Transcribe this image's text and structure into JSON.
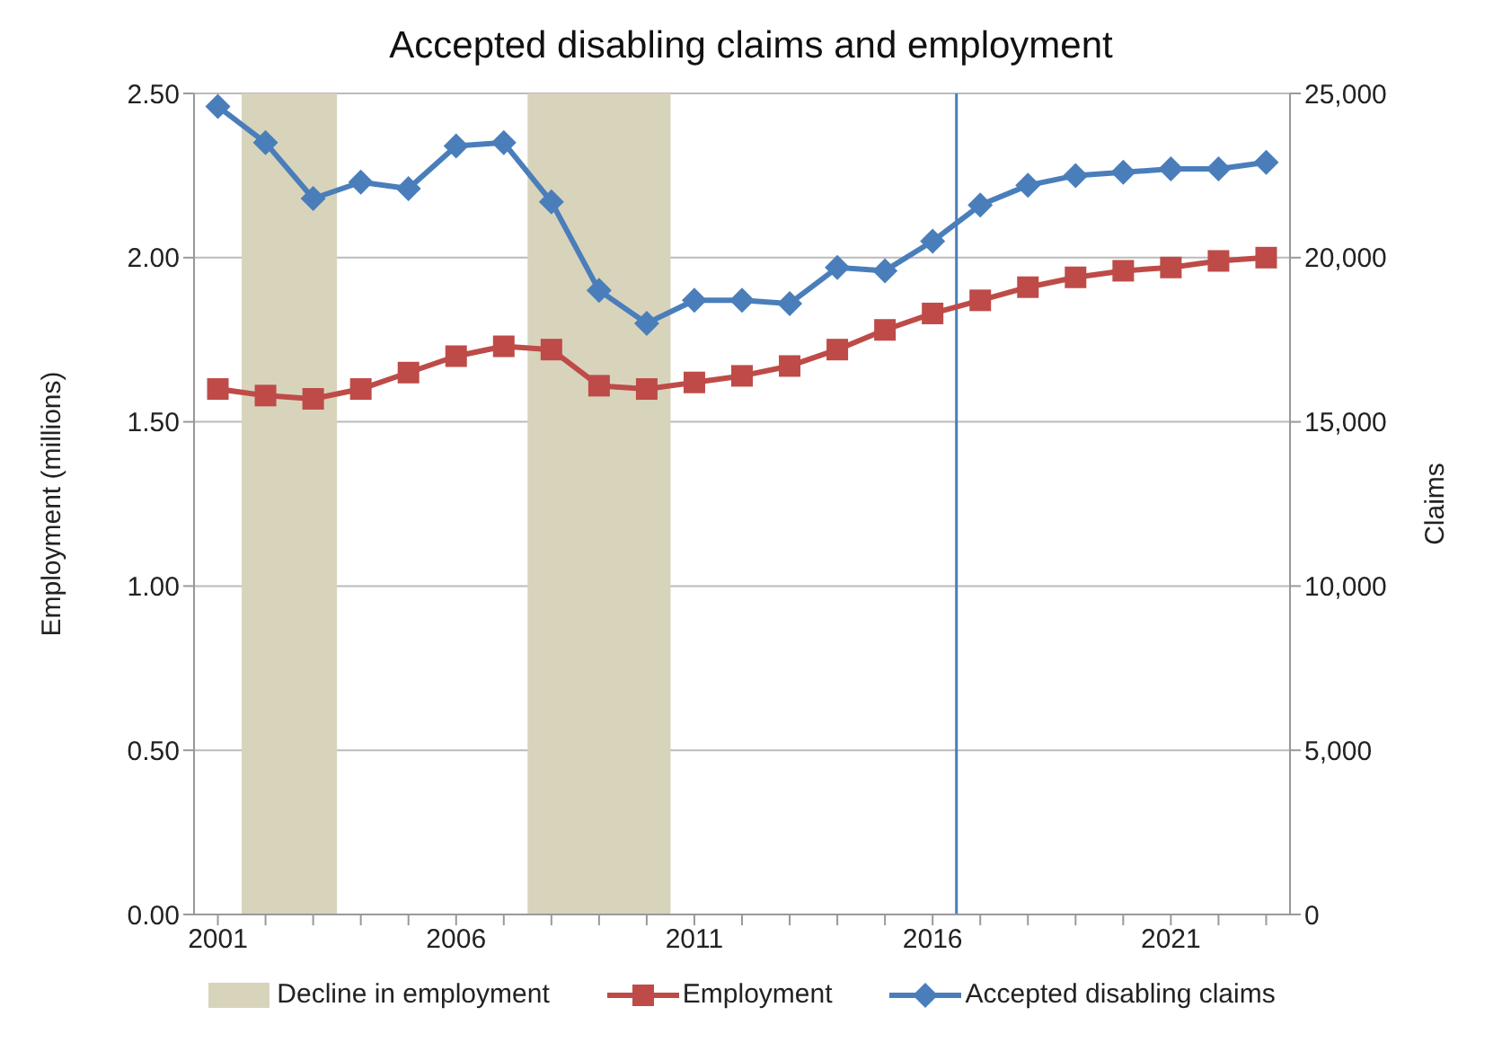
{
  "chart_data": {
    "type": "line",
    "title": "Accepted disabling claims and employment",
    "ylabel": "Employment (millions)",
    "y2label": "Claims",
    "x": [
      2001,
      2002,
      2003,
      2004,
      2005,
      2006,
      2007,
      2008,
      2009,
      2010,
      2011,
      2012,
      2013,
      2014,
      2015,
      2016,
      2017,
      2018,
      2019,
      2020,
      2021,
      2022,
      2023
    ],
    "series": [
      {
        "name": "Employment",
        "color": "#be4b48",
        "marker": "square",
        "axis": "y",
        "values": [
          1.6,
          1.58,
          1.57,
          1.6,
          1.65,
          1.7,
          1.73,
          1.72,
          1.61,
          1.6,
          1.62,
          1.64,
          1.67,
          1.72,
          1.78,
          1.83,
          1.87,
          1.91,
          1.94,
          1.96,
          1.97,
          1.99,
          2.0
        ]
      },
      {
        "name": "Accepted disabling claims",
        "color": "#4a7ebb",
        "marker": "diamond",
        "axis": "y2",
        "values": [
          24600,
          23500,
          21800,
          22300,
          22100,
          23400,
          23500,
          21700,
          19000,
          18000,
          18700,
          18700,
          18600,
          19700,
          19600,
          20500,
          21600,
          22200,
          22500,
          22600,
          22700,
          22700,
          22900
        ]
      }
    ],
    "xlim": [
      2000.5,
      2023.5
    ],
    "xticks": [
      2001,
      {
        "value": 2002,
        "label": null
      },
      {
        "value": 2003,
        "label": null
      },
      {
        "value": 2004,
        "label": null
      },
      {
        "value": 2005,
        "label": null
      },
      2006,
      {
        "value": 2007,
        "label": null
      },
      {
        "value": 2008,
        "label": null
      },
      {
        "value": 2009,
        "label": null
      },
      {
        "value": 2010,
        "label": null
      },
      2011,
      {
        "value": 2012,
        "label": null
      },
      {
        "value": 2013,
        "label": null
      },
      {
        "value": 2014,
        "label": null
      },
      {
        "value": 2015,
        "label": null
      },
      2016,
      {
        "value": 2017,
        "label": null
      },
      {
        "value": 2018,
        "label": null
      },
      {
        "value": 2019,
        "label": null
      },
      {
        "value": 2020,
        "label": null
      },
      2021,
      {
        "value": 2022,
        "label": null
      },
      {
        "value": 2023,
        "label": null
      }
    ],
    "ylim": [
      0,
      2.5
    ],
    "yticks": [
      {
        "value": 0,
        "label": "0.00"
      },
      {
        "value": 0.5,
        "label": "0.50"
      },
      {
        "value": 1,
        "label": "1.00"
      },
      {
        "value": 1.5,
        "label": "1.50"
      },
      {
        "value": 2,
        "label": "2.00"
      },
      {
        "value": 2.5,
        "label": "2.50"
      }
    ],
    "y2lim": [
      0,
      25000
    ],
    "y2ticks": [
      0,
      {
        "value": 5000,
        "label": "5,000"
      },
      {
        "value": 10000,
        "label": "10,000"
      },
      {
        "value": 15000,
        "label": "15,000"
      },
      {
        "value": 20000,
        "label": "20,000"
      },
      {
        "value": 25000,
        "label": "25,000"
      }
    ],
    "bands": [
      {
        "axis": "x",
        "from": 2001.5,
        "to": 2003.5,
        "label": "Decline in employment",
        "color": "#d8d4bc"
      },
      {
        "axis": "x",
        "from": 2007.5,
        "to": 2010.5,
        "color": "#d8d4bc"
      }
    ],
    "ref_lines": [
      {
        "axis": "x",
        "value": 2016.5,
        "color": "#4a7ebb"
      }
    ],
    "grid": "y",
    "legend": "bottom",
    "line_style": "solid"
  }
}
